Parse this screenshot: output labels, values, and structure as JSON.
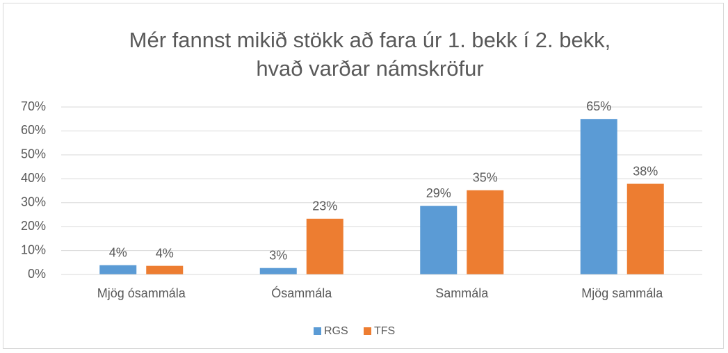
{
  "chart_data": {
    "type": "bar",
    "title": [
      "Mér fannst mikið stökk að fara úr 1. bekk í 2. bekk,",
      "hvað varðar námskröfur"
    ],
    "categories": [
      "Mjög ósammála",
      "Ósammála",
      "Sammála",
      "Mjög sammála"
    ],
    "series": [
      {
        "name": "RGS",
        "color": "#5b9bd5",
        "values": [
          3.9,
          2.7,
          28.7,
          65
        ],
        "value_labels": [
          "4%",
          "3%",
          "29%",
          "65%"
        ]
      },
      {
        "name": "TFS",
        "color": "#ed7d31",
        "values": [
          3.6,
          23.3,
          35.2,
          37.9
        ],
        "value_labels": [
          "4%",
          "23%",
          "35%",
          "38%"
        ]
      }
    ],
    "ylim": [
      0,
      70
    ],
    "yticks": [
      {
        "value": 0,
        "label": "0%"
      },
      {
        "value": 10,
        "label": "10%"
      },
      {
        "value": 20,
        "label": "20%"
      },
      {
        "value": 30,
        "label": "30%"
      },
      {
        "value": 40,
        "label": "40%"
      },
      {
        "value": 50,
        "label": "50%"
      },
      {
        "value": 60,
        "label": "60%"
      },
      {
        "value": 70,
        "label": "70%"
      }
    ],
    "grid": true,
    "legend": "bottom"
  }
}
